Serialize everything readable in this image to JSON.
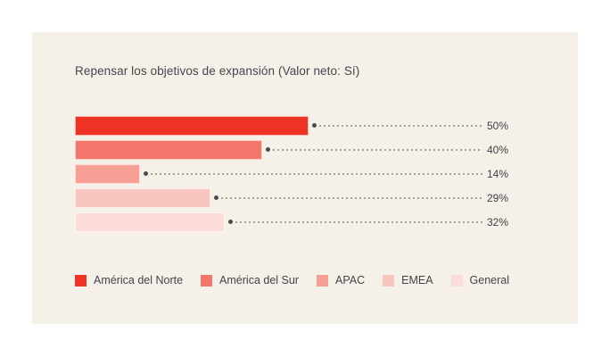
{
  "chart_data": {
    "type": "bar",
    "orientation": "horizontal",
    "title": "Repensar los objetivos de expansión (Valor neto: Sí)",
    "categories": [
      "América del Norte",
      "América del Sur",
      "APAC",
      "EMEA",
      "General"
    ],
    "values": [
      50,
      40,
      14,
      29,
      32
    ],
    "value_labels": [
      "50%",
      "40%",
      "14%",
      "29%",
      "32%"
    ],
    "series_colors": [
      "#ee3224",
      "#f3766a",
      "#f79e95",
      "#f9c5bf",
      "#fcdcd8"
    ],
    "xlabel": "",
    "ylabel": "",
    "xlim": [
      0,
      100
    ],
    "grid": false,
    "legend_position": "bottom",
    "annotations": "dotted leader lines from each bar end to its percentage label"
  },
  "style": {
    "panel_background": "#f5f1e9",
    "page_background": "#ffffff",
    "title_color": "#45454d",
    "value_label_color": "#3f3f47",
    "leader_line_color": "#a6a098",
    "marker_dot_color": "#4a4a52"
  }
}
